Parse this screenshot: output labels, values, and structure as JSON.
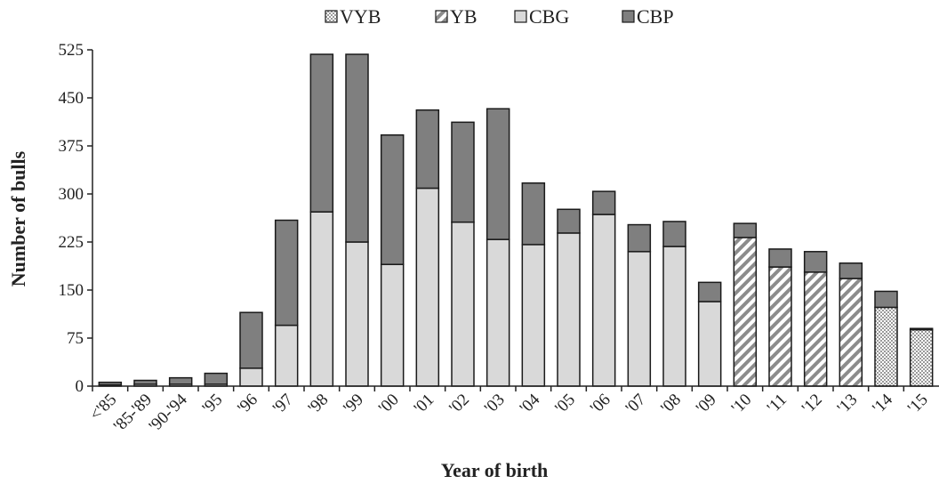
{
  "chart_data": {
    "type": "bar",
    "stacked": true,
    "xlabel": "Year of birth",
    "ylabel": "Number of bulls",
    "ylim": [
      0,
      525
    ],
    "yticks": [
      0,
      75,
      150,
      225,
      300,
      375,
      450,
      525
    ],
    "grid": false,
    "legend_position": "top-center",
    "categories": [
      "<'85",
      "'85-'89",
      "'90-'94",
      "'95",
      "'96",
      "'97",
      "'98",
      "'99",
      "'00",
      "'01",
      "'02",
      "'03",
      "'04",
      "'05",
      "'06",
      "'07",
      "'08",
      "'09",
      "'10",
      "'11",
      "'12",
      "'13",
      "'14",
      "'15"
    ],
    "series": [
      {
        "name": "VYB",
        "fill": "dots",
        "color": "#d8d8d8",
        "values": [
          0,
          0,
          0,
          0,
          0,
          0,
          0,
          0,
          0,
          0,
          0,
          0,
          0,
          0,
          0,
          0,
          0,
          0,
          0,
          0,
          0,
          0,
          123,
          88
        ]
      },
      {
        "name": "YB",
        "fill": "diagonal-stripes",
        "color": "#8c8c8c",
        "values": [
          0,
          0,
          0,
          0,
          0,
          0,
          0,
          0,
          0,
          0,
          0,
          0,
          0,
          0,
          0,
          0,
          0,
          0,
          232,
          186,
          178,
          168,
          0,
          0
        ]
      },
      {
        "name": "CBG",
        "fill": "solid",
        "color": "#d9d9d9",
        "values": [
          2,
          3,
          3,
          3,
          28,
          95,
          272,
          225,
          190,
          309,
          256,
          229,
          221,
          239,
          268,
          210,
          218,
          132,
          0,
          0,
          0,
          0,
          0,
          0
        ]
      },
      {
        "name": "CBP",
        "fill": "solid",
        "color": "#7f7f7f",
        "values": [
          4,
          6,
          10,
          17,
          87,
          164,
          246,
          293,
          202,
          122,
          156,
          204,
          96,
          37,
          36,
          42,
          39,
          30,
          22,
          28,
          32,
          24,
          25,
          2
        ]
      }
    ]
  }
}
